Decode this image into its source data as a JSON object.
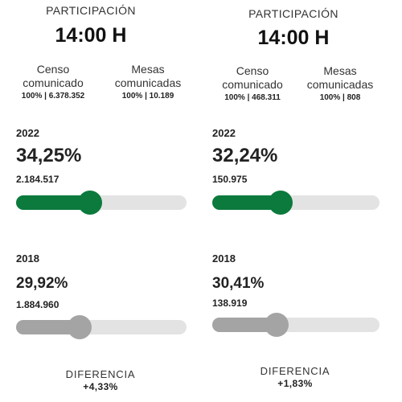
{
  "panels": [
    {
      "header_label": "PARTICIPACIÓN",
      "header_time": "14:00 H",
      "censo_label": "Censo comunicado",
      "censo_value": "100% | 6.378.352",
      "mesas_label": "Mesas comunicadas",
      "mesas_value": "100% | 10.189",
      "current": {
        "year": "2022",
        "percent": "34,25%",
        "count": "2.184.517",
        "level": 34.25
      },
      "previous": {
        "year": "2018",
        "percent": "29,92%",
        "count": "1.884.960",
        "level": 29.92
      },
      "diff_label": "DIFERENCIA",
      "diff_value": "+4,33%"
    },
    {
      "header_label": "PARTICIPACIÓN",
      "header_time": "14:00 H",
      "censo_label": "Censo comunicado",
      "censo_value": "100% | 468.311",
      "mesas_label": "Mesas comunicadas",
      "mesas_value": "100% | 808",
      "current": {
        "year": "2022",
        "percent": "32,24%",
        "count": "150.975",
        "level": 32.24
      },
      "previous": {
        "year": "2018",
        "percent": "30,41%",
        "count": "138.919",
        "level": 30.41
      },
      "diff_label": "DIFERENCIA",
      "diff_value": "+1,83%"
    }
  ],
  "colors": {
    "current_bar": "#0b7a3c",
    "previous_bar": "#a4a4a4",
    "track": "#e3e3e3"
  }
}
